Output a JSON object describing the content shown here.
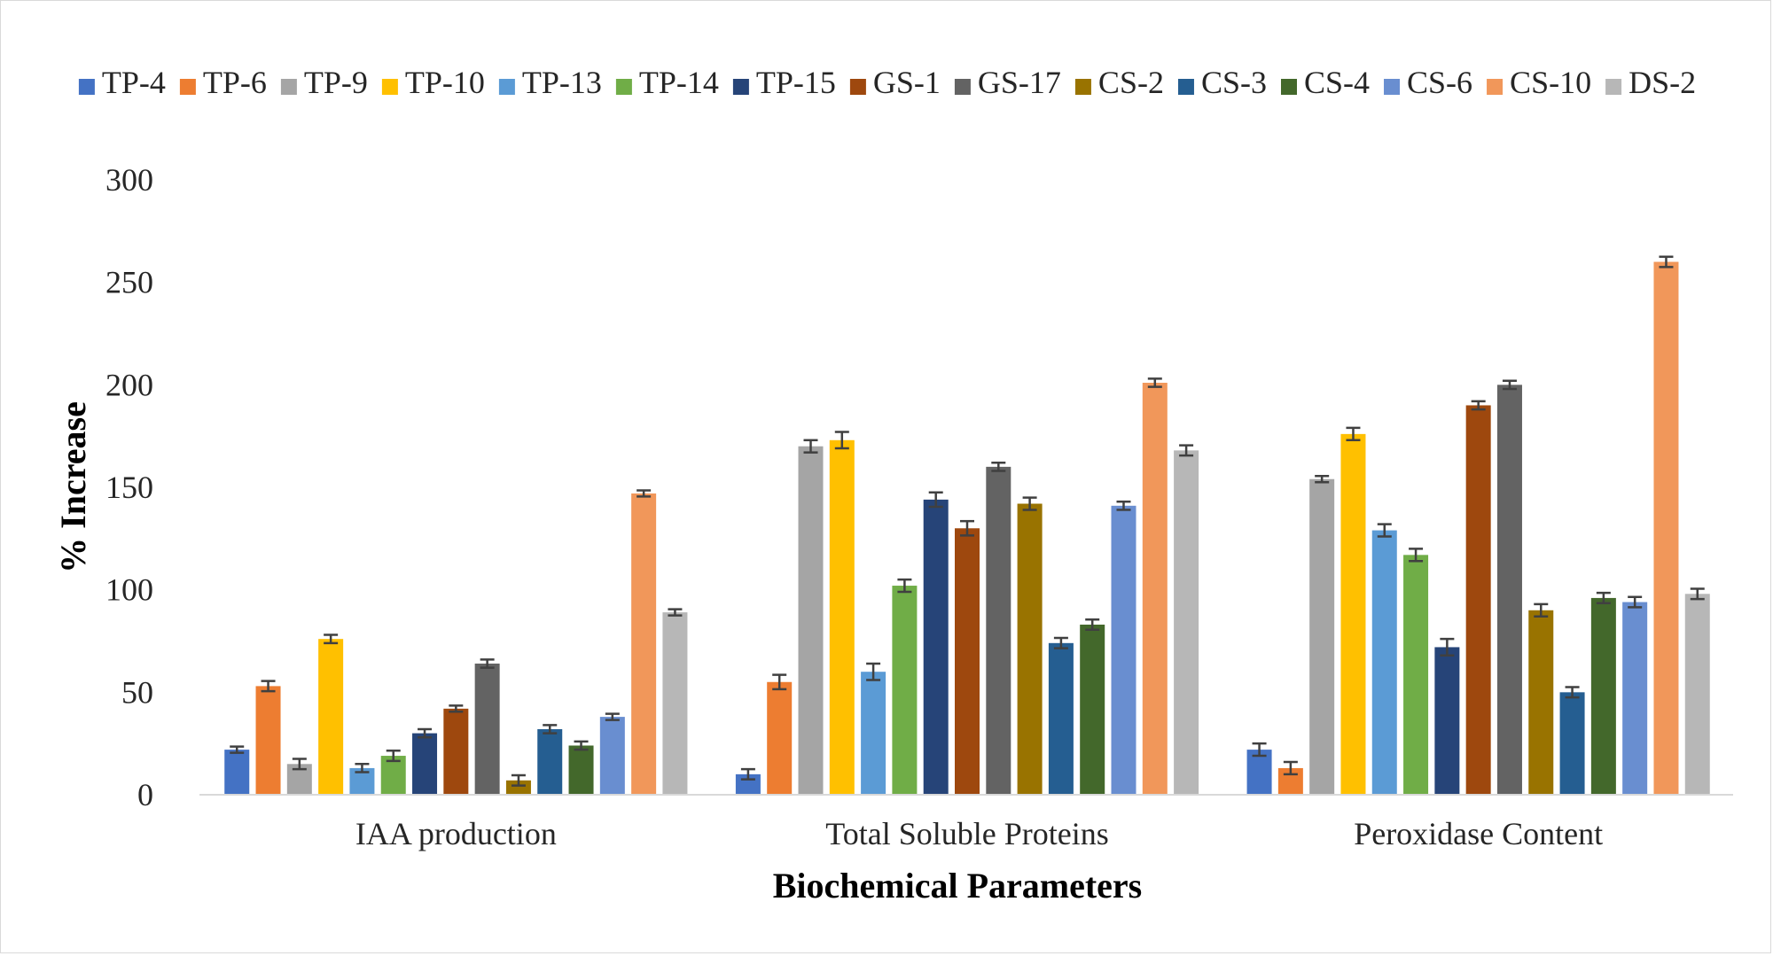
{
  "chart_data": {
    "type": "bar",
    "title": "",
    "xlabel": "Biochemical Parameters",
    "ylabel": "% Increase",
    "ylim": [
      0,
      300
    ],
    "yticks": [
      0,
      50,
      100,
      150,
      200,
      250,
      300
    ],
    "grid": false,
    "legend_position": "top",
    "error_bars": true,
    "categories": [
      "IAA production",
      "Total Soluble Proteins",
      "Peroxidase Content"
    ],
    "series": [
      {
        "name": "TP-4",
        "color": "#4472C4",
        "values": [
          22,
          10,
          22
        ],
        "errors": [
          1.5,
          2.5,
          3
        ]
      },
      {
        "name": "TP-6",
        "color": "#ED7D31",
        "values": [
          53,
          55,
          13
        ],
        "errors": [
          2.5,
          3.5,
          3
        ]
      },
      {
        "name": "TP-9",
        "color": "#A5A5A5",
        "values": [
          15,
          170,
          154
        ],
        "errors": [
          2.5,
          3,
          1.5
        ]
      },
      {
        "name": "TP-10",
        "color": "#FFC000",
        "values": [
          76,
          173,
          176
        ],
        "errors": [
          2,
          4,
          3
        ]
      },
      {
        "name": "TP-13",
        "color": "#5B9BD5",
        "values": [
          13,
          60,
          129
        ],
        "errors": [
          2,
          4,
          3
        ]
      },
      {
        "name": "TP-14",
        "color": "#70AD47",
        "values": [
          19,
          102,
          117
        ],
        "errors": [
          2.5,
          3,
          3
        ]
      },
      {
        "name": "TP-15",
        "color": "#264478",
        "values": [
          30,
          144,
          72
        ],
        "errors": [
          2,
          3.5,
          4
        ]
      },
      {
        "name": "GS-1",
        "color": "#9E480E",
        "values": [
          42,
          130,
          190
        ],
        "errors": [
          1.5,
          3.5,
          2
        ]
      },
      {
        "name": "GS-17",
        "color": "#636363",
        "values": [
          64,
          160,
          200
        ],
        "errors": [
          2,
          2,
          2
        ]
      },
      {
        "name": "CS-2",
        "color": "#997300",
        "values": [
          7,
          142,
          90
        ],
        "errors": [
          2.5,
          3,
          3
        ]
      },
      {
        "name": "CS-3",
        "color": "#255E91",
        "values": [
          32,
          74,
          50
        ],
        "errors": [
          2,
          2.5,
          2.5
        ]
      },
      {
        "name": "CS-4",
        "color": "#43682B",
        "values": [
          24,
          83,
          96
        ],
        "errors": [
          2,
          2.5,
          2.5
        ]
      },
      {
        "name": "CS-6",
        "color": "#698ED0",
        "values": [
          38,
          141,
          94
        ],
        "errors": [
          1.5,
          2,
          2.5
        ]
      },
      {
        "name": "CS-10",
        "color": "#F1975A",
        "values": [
          147,
          201,
          260
        ],
        "errors": [
          1.5,
          2,
          2.5
        ]
      },
      {
        "name": "DS-2",
        "color": "#B7B7B7",
        "values": [
          89,
          168,
          98
        ],
        "errors": [
          1.5,
          2.5,
          2.5
        ]
      }
    ]
  }
}
